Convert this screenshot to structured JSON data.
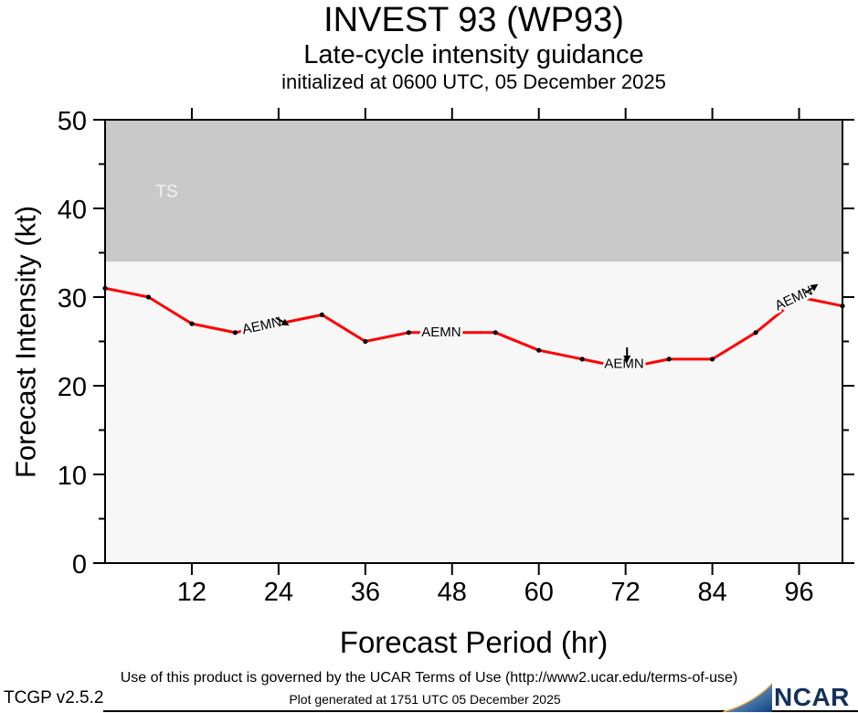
{
  "header": {
    "title": "INVEST 93 (WP93)",
    "subtitle": "Late-cycle intensity guidance",
    "init_line": "initialized at 0600 UTC, 05 December 2025"
  },
  "chart_data": {
    "type": "line",
    "title": "INVEST 93 (WP93)",
    "xlabel": "Forecast Period (hr)",
    "ylabel": "Forecast Intensity (kt)",
    "xlim": [
      0,
      102
    ],
    "ylim": [
      0,
      50
    ],
    "x_ticks": [
      12,
      24,
      36,
      48,
      60,
      72,
      84,
      96
    ],
    "y_ticks": [
      0,
      10,
      20,
      30,
      40,
      50
    ],
    "y_minor_ticks": [
      5,
      15,
      25,
      35,
      45
    ],
    "grid": false,
    "plot_bg": "#f7f7f7",
    "threshold_band": {
      "label": "TS",
      "from_kt": 34,
      "to_kt": 50,
      "color": "#c9c9c9",
      "label_color": "#f2f2f2",
      "label_x_hr": 7,
      "label_y_kt": 42
    },
    "series": [
      {
        "name": "AEMN",
        "color": "#ff0000",
        "x": [
          0,
          6,
          12,
          18,
          24,
          30,
          36,
          42,
          48,
          54,
          60,
          66,
          72,
          78,
          84,
          90,
          96,
          102
        ],
        "values": [
          31,
          30,
          27,
          26,
          27,
          28,
          25,
          26,
          26,
          26,
          24,
          23,
          22,
          23,
          23,
          26,
          30,
          29
        ]
      }
    ],
    "model_labels": [
      {
        "text": "AEMN",
        "x_hr": 21.7,
        "y_kt": 26.7,
        "rotate": -12,
        "arrow": {
          "x_hr": 24.6,
          "y_kt": 27.2,
          "rotate": 30
        }
      },
      {
        "text": "AEMN",
        "x_hr": 46.5,
        "y_kt": 26.0,
        "rotate": 0,
        "arrow": null
      },
      {
        "text": "AEMN",
        "x_hr": 71.8,
        "y_kt": 22.4,
        "rotate": 0,
        "arrow": {
          "x_hr": 72.2,
          "y_kt": 23.4,
          "rotate": 90
        }
      },
      {
        "text": "AEMN",
        "x_hr": 95.3,
        "y_kt": 29.8,
        "rotate": -25,
        "arrow": {
          "x_hr": 97.8,
          "y_kt": 31.0,
          "rotate": -35
        }
      }
    ]
  },
  "footer": {
    "terms": "Use of this product is governed by the UCAR Terms of Use (http://www2.ucar.edu/terms-of-use)",
    "generated": "Plot generated at 1751 UTC   05 December 2025"
  },
  "branding": {
    "tcgp_version": "TCGP v2.5.2",
    "ncar": "NCAR"
  }
}
